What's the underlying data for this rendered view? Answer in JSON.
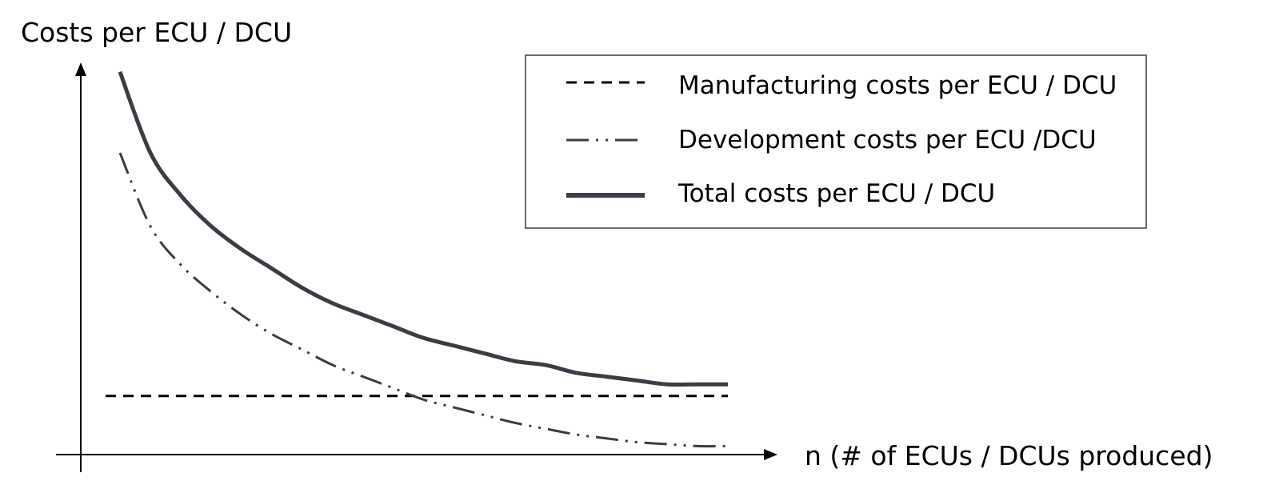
{
  "chart_data": {
    "type": "line",
    "title": "",
    "ylabel": "Costs per ECU / DCU",
    "xlabel": "n (# of ECUs / DCUs produced)",
    "xlim": [
      0,
      1
    ],
    "ylim": [
      0,
      1
    ],
    "grid": false,
    "legend_position": "top-right",
    "x": [
      0.0,
      0.05,
      0.1,
      0.15,
      0.2,
      0.25,
      0.3,
      0.35,
      0.4,
      0.45,
      0.5,
      0.55,
      0.6,
      0.65,
      0.7,
      0.75,
      0.8,
      0.85,
      0.9,
      0.95,
      1.0
    ],
    "series": [
      {
        "name": "Manufacturing costs per ECU / DCU",
        "style": "dashed",
        "color": "#000000",
        "values": [
          0.15,
          0.15,
          0.15,
          0.15,
          0.15,
          0.15,
          0.15,
          0.15,
          0.15,
          0.15,
          0.15,
          0.15,
          0.15,
          0.15,
          0.15,
          0.15,
          0.15,
          0.15,
          0.15,
          0.15,
          0.15
        ]
      },
      {
        "name": "Development costs per ECU /DCU",
        "style": "dash-dot-dot",
        "color": "#3b3d45",
        "values": [
          0.78,
          0.59,
          0.49,
          0.42,
          0.36,
          0.31,
          0.27,
          0.23,
          0.2,
          0.17,
          0.14,
          0.12,
          0.1,
          0.08,
          0.065,
          0.05,
          0.04,
          0.03,
          0.025,
          0.02,
          0.02
        ]
      },
      {
        "name": "Total costs per ECU / DCU",
        "style": "solid",
        "color": "#3b3d45",
        "values": [
          0.99,
          0.78,
          0.67,
          0.59,
          0.53,
          0.48,
          0.43,
          0.39,
          0.36,
          0.33,
          0.3,
          0.28,
          0.26,
          0.24,
          0.23,
          0.21,
          0.2,
          0.19,
          0.18,
          0.18,
          0.18
        ]
      }
    ]
  }
}
